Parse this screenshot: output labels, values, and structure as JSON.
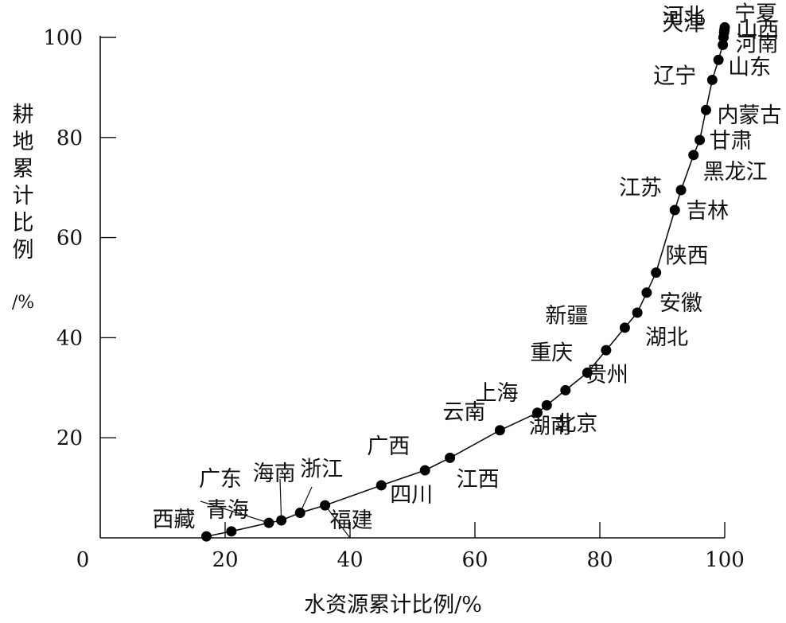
{
  "chart_data": {
    "type": "scatter",
    "title": "",
    "xlabel": "水资源累计比例/%",
    "ylabel": "耕地累计比例",
    "ylabel_unit": "/%",
    "xlim": [
      0,
      100
    ],
    "ylim": [
      0,
      100
    ],
    "x_ticks": [
      "0",
      "20",
      "40",
      "60",
      "80",
      "100"
    ],
    "y_ticks": [
      "20",
      "40",
      "60",
      "80",
      "100"
    ],
    "grid": false,
    "points": [
      {
        "name": "西藏",
        "x": 17,
        "y": 0.3
      },
      {
        "name": "青海",
        "x": 21,
        "y": 1.3
      },
      {
        "name": "广东",
        "x": 27,
        "y": 3
      },
      {
        "name": "海南",
        "x": 29,
        "y": 3.5
      },
      {
        "name": "浙江",
        "x": 32,
        "y": 5
      },
      {
        "name": "福建",
        "x": 36,
        "y": 6.5
      },
      {
        "name": "广西",
        "x": 45,
        "y": 10.5
      },
      {
        "name": "四川",
        "x": 52,
        "y": 13.5
      },
      {
        "name": "江西",
        "x": 56,
        "y": 16
      },
      {
        "name": "云南",
        "x": 64,
        "y": 21.5
      },
      {
        "name": "上海",
        "x": 70,
        "y": 25
      },
      {
        "name": "北京",
        "x": 71.5,
        "y": 26.5
      },
      {
        "name": "湖南",
        "x": 74.5,
        "y": 29.5
      },
      {
        "name": "重庆",
        "x": 78,
        "y": 33
      },
      {
        "name": "贵州",
        "x": 81,
        "y": 37.5
      },
      {
        "name": "新疆",
        "x": 84,
        "y": 42
      },
      {
        "name": "湖北",
        "x": 86,
        "y": 45
      },
      {
        "name": "安徽",
        "x": 87.5,
        "y": 49
      },
      {
        "name": "陕西",
        "x": 89,
        "y": 53
      },
      {
        "name": "吉林",
        "x": 92,
        "y": 65.5
      },
      {
        "name": "江苏",
        "x": 93,
        "y": 69.5
      },
      {
        "name": "黑龙江",
        "x": 95,
        "y": 76.5
      },
      {
        "name": "甘肃",
        "x": 96,
        "y": 79.5
      },
      {
        "name": "内蒙古",
        "x": 97,
        "y": 85.5
      },
      {
        "name": "辽宁",
        "x": 98,
        "y": 91.5
      },
      {
        "name": "山东",
        "x": 99,
        "y": 95.5
      },
      {
        "name": "河南",
        "x": 99.7,
        "y": 98.5
      },
      {
        "name": "山西",
        "x": 99.8,
        "y": 100
      },
      {
        "name": "天津",
        "x": 99.9,
        "y": 101
      },
      {
        "name": "河北",
        "x": 99.95,
        "y": 101.5
      },
      {
        "name": "宁夏",
        "x": 100,
        "y": 102
      }
    ]
  }
}
